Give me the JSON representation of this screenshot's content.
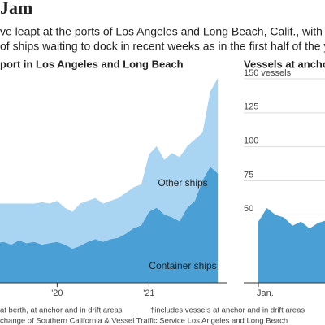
{
  "header": {
    "title": "Jam",
    "subtitle_lines": [
      "ve leapt at the ports of Los Angeles and Long Beach, Calif., with almost twi",
      "of ships waiting to dock in recent weeks as in the first half of the year."
    ]
  },
  "chart_data": [
    {
      "type": "area",
      "stacked": true,
      "title": "port in Los Angeles and Long Beach",
      "categories": [
        null,
        null,
        null,
        null,
        null,
        null,
        null,
        null,
        "'20",
        null,
        null,
        null,
        null,
        null,
        null,
        null,
        null,
        null,
        null,
        null,
        "'21",
        null,
        null,
        null,
        null,
        null,
        null,
        null,
        null,
        null
      ],
      "ylim": [
        0,
        155
      ],
      "series": [
        {
          "name": "Container ships",
          "color": "#4a9fd5",
          "values": [
            29,
            30,
            28,
            31,
            29,
            30,
            28,
            29,
            30,
            28,
            25,
            27,
            30,
            32,
            30,
            32,
            33,
            36,
            40,
            42,
            52,
            55,
            50,
            48,
            45,
            55,
            60,
            75,
            85,
            80
          ]
        },
        {
          "name": "Other ships",
          "color": "#a9d5f2",
          "values": [
            29,
            28,
            30,
            27,
            29,
            28,
            31,
            29,
            30,
            27,
            27,
            31,
            30,
            30,
            28,
            28,
            29,
            30,
            30,
            30,
            42,
            45,
            40,
            47,
            47,
            45,
            45,
            35,
            55,
            70
          ]
        }
      ]
    },
    {
      "type": "area",
      "title": "Vessels at anchor†",
      "categories": [
        "Jan.",
        null,
        null,
        null,
        null,
        null,
        null,
        null,
        null
      ],
      "ylim": [
        0,
        150
      ],
      "yticks": [
        {
          "value": 150,
          "label": "150 vessels"
        },
        125,
        100,
        75,
        50
      ],
      "color": "#4a9fd5",
      "values": [
        45,
        55,
        50,
        48,
        42,
        45,
        40,
        44,
        46
      ]
    }
  ],
  "footnotes": [
    "at berth, at anchor and in drift areas",
    "†includes vessels at anchor and in drift areas",
    "change of Southern California & Vessel Traffic Service Los Angeles and Long Beach"
  ]
}
